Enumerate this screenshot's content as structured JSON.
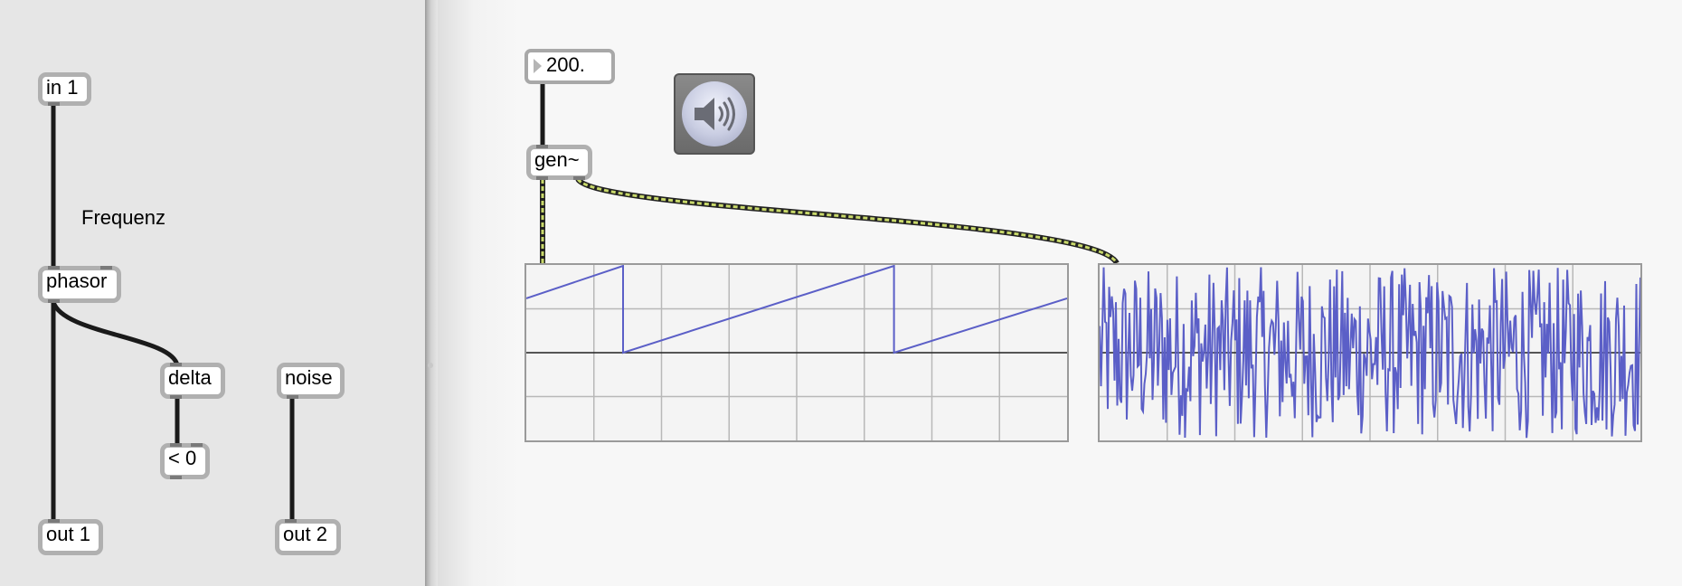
{
  "gen_subpatcher": {
    "inlet_label": "in 1",
    "comment": "Frequenz",
    "phasor_label": "phasor",
    "delta_label": "delta",
    "compare_label": "< 0",
    "noise_label": "noise",
    "outlet1_label": "out 1",
    "outlet2_label": "out 2"
  },
  "main_patcher": {
    "number_box_value": "200.",
    "gen_object_label": "gen~",
    "dac_icon": "speaker-icon"
  },
  "colors": {
    "signal_trace": "#5b5fc7",
    "signal_patchcord": "#c8d86a",
    "control_patchcord": "#000000"
  },
  "scopes": [
    {
      "name": "sawtooth-scope",
      "signal": "phasor",
      "ylim": [
        -1,
        1
      ],
      "grid_columns": 8,
      "grid_rows": 4,
      "points": [
        [
          0,
          0.62
        ],
        [
          0.179,
          0.99
        ],
        [
          0.179,
          0
        ],
        [
          0.68,
          0.99
        ],
        [
          0.68,
          0
        ],
        [
          1,
          0.62
        ]
      ]
    },
    {
      "name": "noise-scope",
      "signal": "noise",
      "ylim": [
        -1,
        1
      ],
      "grid_columns": 8,
      "grid_rows": 4,
      "samples": 400
    }
  ]
}
